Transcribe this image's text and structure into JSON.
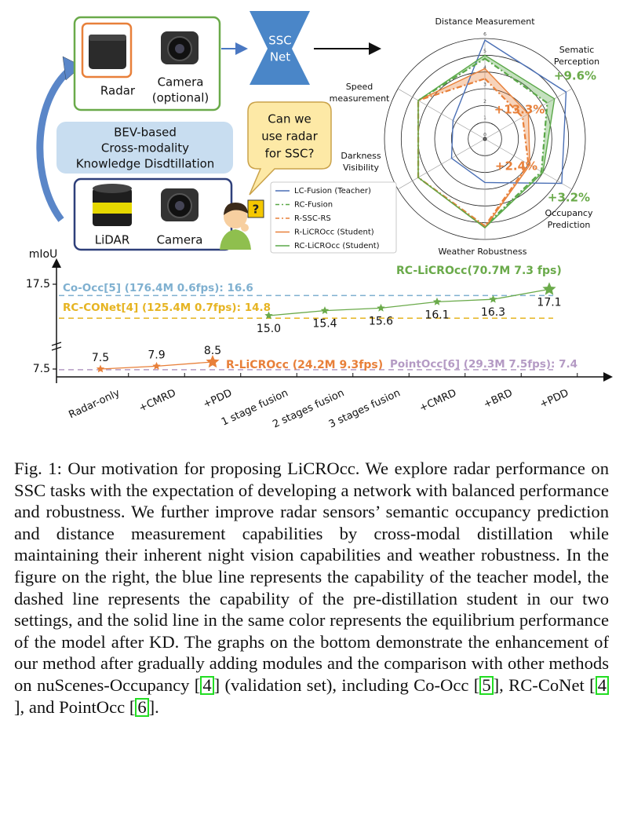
{
  "diagram": {
    "radar_label": "Radar",
    "camera_label": [
      "Camera",
      "(optional)"
    ],
    "network": [
      "SSC",
      "Net"
    ],
    "distillation": [
      "BEV-based",
      "Cross-modality",
      "Knowledge Disdtillation"
    ],
    "lidar_label": "LiDAR",
    "camera2_label": "Camera",
    "question": [
      "Can we",
      "use radar",
      "for SSC?"
    ],
    "question_mark": "?"
  },
  "chart_data": [
    {
      "type": "radar",
      "axes": [
        [
          "Distance Measurement"
        ],
        [
          "Sematic",
          "Perception"
        ],
        [
          "Occupancy",
          "Prediction"
        ],
        [
          "Weather Robustness"
        ],
        [
          "Darkness",
          "Visibility"
        ],
        [
          "Speed",
          "measurement"
        ]
      ],
      "rlim": [
        0,
        6
      ],
      "rticks": [
        0,
        1,
        2,
        3,
        4,
        5,
        6
      ],
      "legend": "lower-left",
      "series": [
        {
          "name": "LC-Fusion (Teacher)",
          "color": "#4a6fb5",
          "dash": false,
          "values": [
            5.9,
            5.6,
            5.3,
            2.6,
            2.3,
            2.2
          ]
        },
        {
          "name": "RC-Fusion",
          "color": "#5aa848",
          "dash": true,
          "values": [
            4.8,
            4.3,
            3.9,
            5.2,
            4.6,
            4.6
          ]
        },
        {
          "name": "R-SSC-RS",
          "color": "#e8803a",
          "dash": true,
          "values": [
            3.6,
            2.6,
            3.0,
            5.2,
            4.6,
            4.6
          ]
        },
        {
          "name": "R-LiCROcc (Student)",
          "color": "#e8803a",
          "dash": false,
          "values": [
            4.2,
            3.0,
            3.1,
            5.3,
            4.6,
            4.6
          ]
        },
        {
          "name": "RC-LiCROcc (Student)",
          "color": "#5aa848",
          "dash": false,
          "values": [
            5.0,
            4.8,
            4.0,
            5.3,
            4.6,
            4.6
          ]
        }
      ],
      "annotations": [
        {
          "text": "+9.6%",
          "color": "#6aaa4a"
        },
        {
          "text": "+13.3%",
          "color": "#e8803a"
        },
        {
          "text": "+2.4%",
          "color": "#e8803a"
        },
        {
          "text": "+3.2%",
          "color": "#6aaa4a"
        }
      ]
    },
    {
      "type": "line",
      "ylabel": "mIoU",
      "categories": [
        "Radar-only",
        "+CMRD",
        "+PDD",
        "1 stage fusion",
        "2 stages fusion",
        "3 stages fusion",
        "+CMRD",
        "+BRD",
        "+PDD"
      ],
      "ylim": [
        7,
        18
      ],
      "y_break": [
        9,
        14.5
      ],
      "yticks": [
        7.5,
        17.5
      ],
      "series": [
        {
          "name": "R-LiCROcc (24.2M 9.3fps)",
          "color": "#e8803a",
          "values": [
            7.5,
            7.9,
            8.5,
            null,
            null,
            null,
            null,
            null,
            null
          ]
        },
        {
          "name": "RC-LiCROcc(70.7M 7.3 fps)",
          "color": "#6aaa4a",
          "values": [
            null,
            null,
            null,
            15.0,
            15.4,
            15.6,
            16.1,
            16.3,
            17.1
          ],
          "value_labels": [
            null,
            null,
            null,
            "15.0",
            "15.4",
            "15.6",
            "16.1",
            "16.3",
            "17.1"
          ]
        }
      ],
      "references": [
        {
          "label": "Co-Occ[5] (176.4M 0.6fps): 16.6",
          "value": 16.6,
          "color": "#7fb0d0"
        },
        {
          "label": "RC-CONet[4] (125.4M 0.7fps): 14.8",
          "value": 14.8,
          "color": "#e6b422"
        },
        {
          "label": "PointOcc[6] (29.3M 7.5fps): 7.4",
          "value": 7.4,
          "color": "#b49ac4"
        }
      ]
    }
  ],
  "caption": {
    "label": "Fig. 1:",
    "text": [
      "Our motivation for proposing LiCROcc. We explore radar performance on SSC tasks with the expectation of developing a network with balanced performance and robustness. We further improve radar sensors’ semantic occupancy prediction and distance measurement capabilities by cross-modal distillation while maintaining their inherent night vision capabilities and weather robustness. In the figure on the right, the blue line represents the capability of the teacher model, the dashed line represents the capability of the pre-distillation student in our two settings, and the solid line in the same color represents the equilibrium performance of the model after KD. The graphs on the bottom demonstrate the enhancement of our method after gradually adding modules and the comparison with other methods on nuScenes-Occupancy [",
      "] (validation set), including Co-Occ [",
      "], RC-CoNet [",
      "], and PointOcc [",
      "]."
    ],
    "refs": [
      "4",
      "5",
      "4",
      "6"
    ]
  }
}
